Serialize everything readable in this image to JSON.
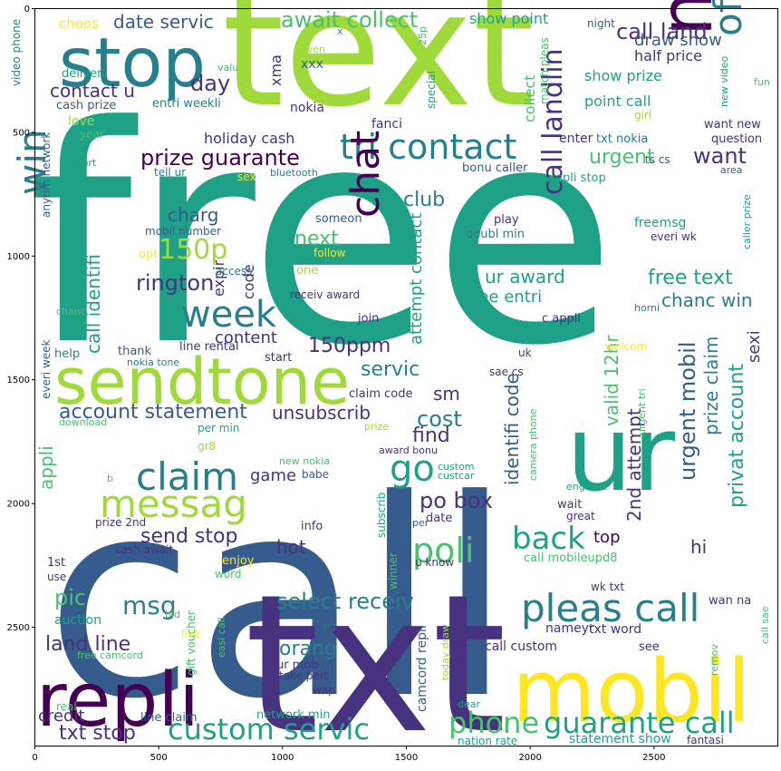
{
  "axes": {
    "x_ticks": [
      "0",
      "500",
      "1000",
      "1500",
      "2000",
      "2500"
    ],
    "y_ticks": [
      "0",
      "500",
      "1000",
      "1500",
      "2000",
      "2500"
    ]
  },
  "palette": {
    "yellow": "#fde725",
    "lime": "#9fda3a",
    "green": "#4ac16d",
    "teal": "#1fa187",
    "cyan": "#277f8e",
    "blue": "#365c8d",
    "indigo": "#46327e",
    "purple": "#440154"
  },
  "words": [
    "free",
    "call",
    "txt",
    "text",
    "ur",
    "stop",
    "mobil",
    "repli",
    "new",
    "sendtone",
    "claim",
    "messag",
    "tri contact",
    "offer",
    "pleas call",
    "chat",
    "win",
    "week",
    "poli",
    "go",
    "back",
    "custom servic",
    "phone",
    "guarante call",
    "150p",
    "prize guarante",
    "await collect",
    "call landlin",
    "msg",
    "select receiv",
    "txt stop",
    "land line",
    "rington",
    "date servic",
    "call land",
    "contact u",
    "account statement",
    "150ppm",
    "draw show",
    "day",
    "want",
    "urgent",
    "club",
    "charg",
    "next",
    "free text",
    "chanc win",
    "ur award",
    "free entri",
    "urgent mobil",
    "valid 12hr",
    "identifi code",
    "2nd attempt",
    "privat account",
    "prize claim",
    "send stop",
    "po box",
    "cost",
    "find",
    "sm",
    "servic",
    "unsubscrib",
    "game",
    "hot",
    "pic",
    "orang",
    "credit",
    "top",
    "hi",
    "attempt contact",
    "call identifi",
    "expir",
    "code",
    "content",
    "sexi",
    "appli",
    "show prize",
    "half price",
    "point call",
    "show point",
    "collect",
    "holiday cash",
    "nokia",
    "fanci",
    "xma",
    "xxx",
    "entri weekli",
    "cash prize",
    "love",
    "year",
    "deliveri",
    "video phone",
    "choos",
    "special",
    "match pleas",
    "enter",
    "txt nokia",
    "ts cs",
    "girl",
    "want new",
    "question",
    "new video",
    "fun",
    "night",
    "area",
    "caller prize",
    "bonu caller",
    "repli stop",
    "freemsg",
    "everi wk",
    "play",
    "doubl min",
    "someon",
    "mobil number",
    "follow",
    "one",
    "receiv award",
    "join",
    "opt",
    "access",
    "horni",
    "c appli",
    "welcom",
    "uk",
    "sae cs",
    "start",
    "line rental",
    "thank",
    "help",
    "everi week",
    "anytim network",
    "sport",
    "tell ur",
    "sex",
    "bluetooth",
    "chanc",
    "nokia tone",
    "claim code",
    "per min",
    "prize",
    "gr8",
    "download",
    "award bonu",
    "new nokia",
    "babe",
    "custom",
    "custcar",
    "england",
    "camera phone",
    "urgent tri",
    "wait",
    "great",
    "date",
    "info",
    "subscrib",
    "per",
    "b",
    "prize 2nd",
    "cash await",
    "1st",
    "use",
    "enjoy",
    "word",
    "u know",
    "winner",
    "call mobileupd8",
    "wk txt",
    "auction",
    "bid",
    "gift voucher",
    "easi call",
    "live",
    "eg",
    "ur mob",
    "take part",
    "wap",
    "line claim",
    "network min",
    "real",
    "free camcord",
    "camcord repli",
    "today draw",
    "call custom",
    "nameyr",
    "txt word",
    "wan na",
    "see",
    "remov",
    "call sae",
    "dear",
    "nation rate",
    "statement show",
    "fantasi",
    "even",
    "valu",
    "25p",
    "x"
  ]
}
